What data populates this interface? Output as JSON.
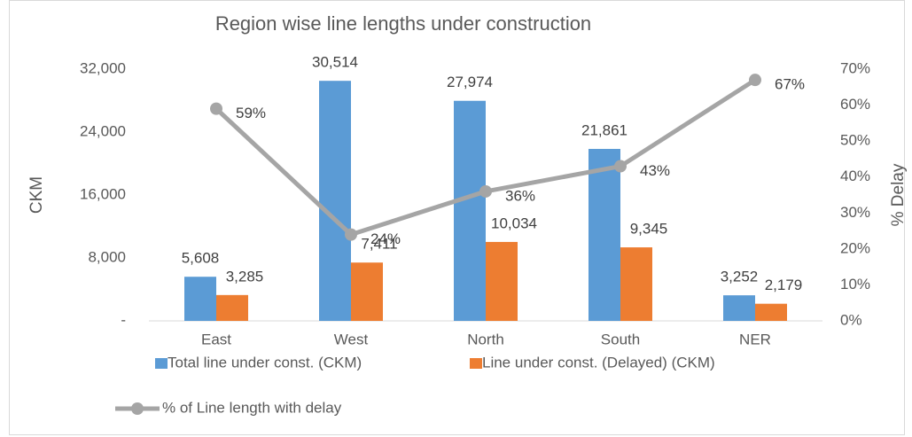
{
  "chart_data": {
    "type": "bar",
    "title": "Region wise line lengths under construction",
    "y_label": "CKM",
    "y2_label": "% Delay",
    "categories": [
      "East",
      "West",
      "North",
      "South",
      "NER"
    ],
    "series": [
      {
        "name": "Total line under const. (CKM)",
        "color": "#5b9bd5",
        "values": [
          5608,
          30514,
          27974,
          21861,
          3252
        ],
        "value_labels": [
          "5,608",
          "30,514",
          "27,974",
          "21,861",
          "3,252"
        ]
      },
      {
        "name": "Line under const. (Delayed) (CKM)",
        "color": "#ed7d31",
        "values": [
          3285,
          7411,
          10034,
          9345,
          2179
        ],
        "value_labels": [
          "3,285",
          "7,411",
          "10,034",
          "9,345",
          "2,179"
        ]
      },
      {
        "name": "% of Line length with delay",
        "color": "#a5a5a5",
        "type": "line",
        "axis": "y2",
        "values": [
          59,
          24,
          36,
          43,
          67
        ],
        "value_labels": [
          "59%",
          "24%",
          "36%",
          "43%",
          "67%"
        ]
      }
    ],
    "ylim": [
      0,
      32000
    ],
    "yticks": [
      {
        "value": 0,
        "label": "-"
      },
      {
        "value": 8000,
        "label": "8,000"
      },
      {
        "value": 16000,
        "label": "16,000"
      },
      {
        "value": 24000,
        "label": "24,000"
      },
      {
        "value": 32000,
        "label": "32,000"
      }
    ],
    "y2lim": [
      0,
      70
    ],
    "y2ticks": [
      {
        "value": 0,
        "label": "0%"
      },
      {
        "value": 10,
        "label": "10%"
      },
      {
        "value": 20,
        "label": "20%"
      },
      {
        "value": 30,
        "label": "30%"
      },
      {
        "value": 40,
        "label": "40%"
      },
      {
        "value": 50,
        "label": "50%"
      },
      {
        "value": 60,
        "label": "60%"
      },
      {
        "value": 70,
        "label": "70%"
      }
    ],
    "grid": false,
    "legend": "bottom"
  }
}
